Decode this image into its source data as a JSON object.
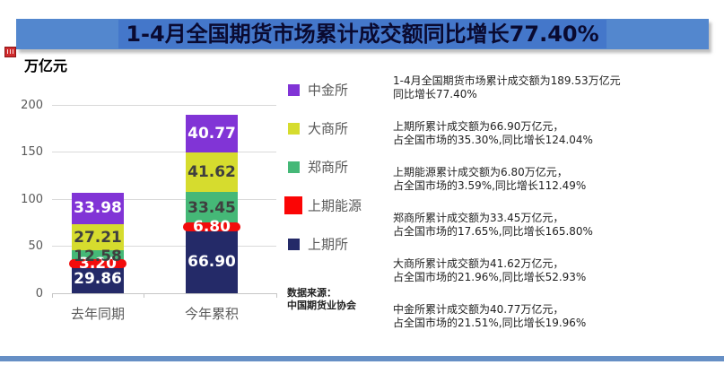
{
  "title": {
    "text": "1-4月全国期货市场累计成交额同比增长77.40%"
  },
  "y_axis_label": "万亿元",
  "chart_data": {
    "type": "bar",
    "stacked": true,
    "title": "1-4月全国期货市场累计成交额同比增长77.40%",
    "ylabel": "万亿元",
    "ylim": [
      0,
      200
    ],
    "yticks": [
      0,
      50,
      100,
      150,
      200
    ],
    "grid": true,
    "legend_position": "right",
    "categories": [
      "去年同期",
      "今年累积"
    ],
    "series": [
      {
        "name": "上期所",
        "color": "#242A68",
        "label_color": "#ffffff",
        "values": [
          29.86,
          66.9
        ],
        "labels": [
          "29.86",
          "66.90"
        ]
      },
      {
        "name": "上期能源",
        "color": "#f20c0c",
        "label_color": "#ffffff",
        "values": [
          3.2,
          6.8
        ],
        "labels": [
          "3.20",
          "6.80"
        ],
        "pill": true
      },
      {
        "name": "郑商所",
        "color": "#45B877",
        "label_color": "#3f3f3f",
        "values": [
          12.58,
          33.45
        ],
        "labels": [
          "12.58",
          "33.45"
        ]
      },
      {
        "name": "大商所",
        "color": "#D6DC2E",
        "label_color": "#3f3f3f",
        "values": [
          27.21,
          41.62
        ],
        "labels": [
          "27.21",
          "41.62"
        ]
      },
      {
        "name": "中金所",
        "color": "#8134D6",
        "label_color": "#ffffff",
        "values": [
          33.98,
          40.77
        ],
        "labels": [
          "33.98",
          "40.77"
        ]
      }
    ]
  },
  "legend": {
    "items": [
      {
        "label": "中金所",
        "color": "#8134D6",
        "large": false
      },
      {
        "label": "大商所",
        "color": "#D6DC2E",
        "large": false
      },
      {
        "label": "郑商所",
        "color": "#45B877",
        "large": false
      },
      {
        "label": "上期能源",
        "color": "#fb0505",
        "large": true
      },
      {
        "label": "上期所",
        "color": "#242A68",
        "large": false
      }
    ]
  },
  "source": {
    "line1": "数据来源：",
    "line2": "中国期货业协会"
  },
  "annotations": [
    {
      "line1": "1-4月全国期货市场累计成交额为189.53万亿元",
      "line2": "同比增长77.40%"
    },
    {
      "line1": "上期所累计成交额为66.90万亿元，",
      "line2": "占全国市场的35.30%,同比增长124.04%"
    },
    {
      "line1": "上期能源累计成交额为6.80万亿元，",
      "line2": "占全国市场的3.59%,同比增长112.49%"
    },
    {
      "line1": "郑商所累计成交额为33.45万亿元，",
      "line2": "占全国市场的17.65%,同比增长165.80%"
    },
    {
      "line1": "大商所累计成交额为41.62万亿元，",
      "line2": "占全国市场的21.96%,同比增长52.93%"
    },
    {
      "line1": "中金所累计成交额为40.77万亿元，",
      "line2": "占全国市场的21.51%,同比增长19.96%"
    }
  ]
}
